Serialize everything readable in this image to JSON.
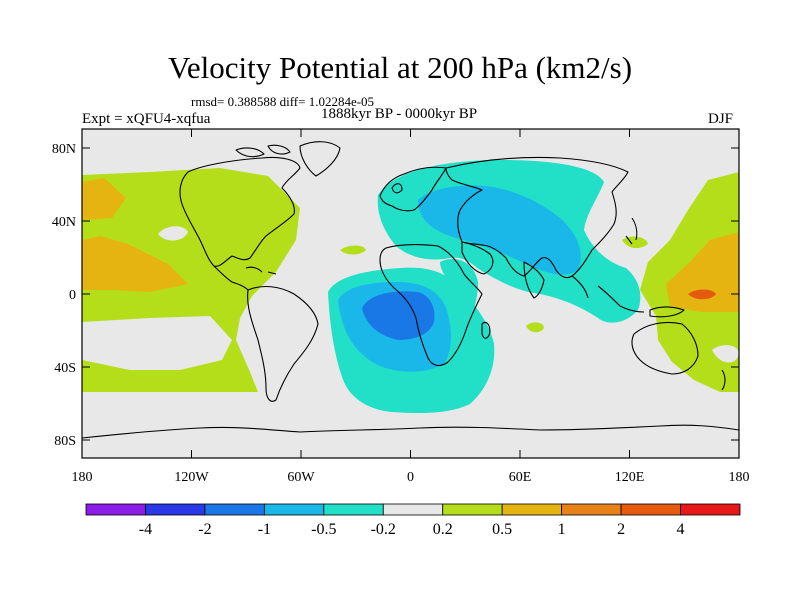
{
  "header": {
    "title": "Velocity Potential at 200 hPa (km2/s)",
    "stats": "rmsd= 0.388588 diff= 1.02284e-05",
    "left_label": "Expt = xQFU4-xqfua",
    "center_label": "1888kyr BP - 0000kyr BP",
    "right_label": "DJF"
  },
  "axes": {
    "lat_labels": [
      "80N",
      "40N",
      "0",
      "40S",
      "80S"
    ],
    "lon_labels": [
      "180",
      "120W",
      "60W",
      "0",
      "60E",
      "120E",
      "180"
    ]
  },
  "colorbar": {
    "labels": [
      "-4",
      "-2",
      "-1",
      "-0.5",
      "-0.2",
      "0.2",
      "0.5",
      "1",
      "2",
      "4"
    ],
    "colors": [
      "#8a1ee8",
      "#2a38e6",
      "#1a78e6",
      "#1ab8e8",
      "#22e0c8",
      "#e8e8e8",
      "#b4de1a",
      "#e6b410",
      "#e68218",
      "#e65a10",
      "#e61818"
    ]
  },
  "field_colors": {
    "land_neutral": "#e8e8e8",
    "pos_low": "#b4de1a",
    "pos_mid": "#e6b410",
    "pos_high": "#e65a10",
    "neg_low": "#22e0c8",
    "neg_mid": "#1ab8e8",
    "neg_high": "#1a78e6"
  }
}
